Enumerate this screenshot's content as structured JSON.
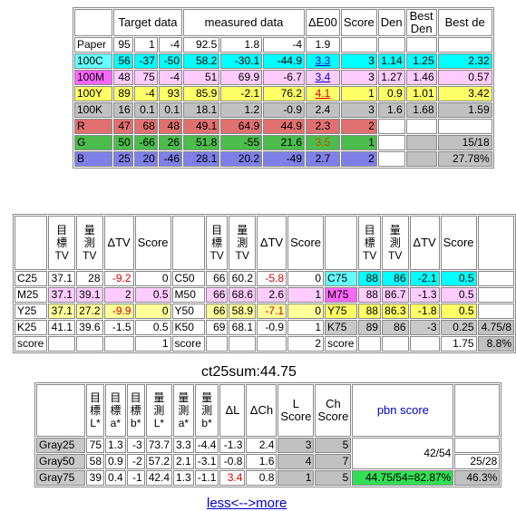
{
  "t1": {
    "headers": {
      "target": "Target data",
      "measured": "measured data",
      "de": "ΔE00",
      "score": "Score",
      "den": "Den",
      "best_den": "Best Den",
      "best_de": "Best de"
    },
    "rows": [
      {
        "name": "Paper",
        "t": [
          "95",
          "1",
          "-4"
        ],
        "m": [
          "92.5",
          "1.8",
          "-4"
        ],
        "de": "1.9",
        "score": "",
        "den": "",
        "bden": "",
        "bde": ""
      },
      {
        "name": "100C",
        "t": [
          "56",
          "-37",
          "-50"
        ],
        "m": [
          "58.2",
          "-30.1",
          "-44.9"
        ],
        "de": "3.3",
        "score": "3",
        "den": "1.14",
        "bden": "1.25",
        "bde": "2.32"
      },
      {
        "name": "100M",
        "t": [
          "48",
          "75",
          "-4"
        ],
        "m": [
          "51",
          "69.9",
          "-6.7"
        ],
        "de": "3.4",
        "score": "3",
        "den": "1.27",
        "bden": "1.46",
        "bde": "0.57"
      },
      {
        "name": "100Y",
        "t": [
          "89",
          "-4",
          "93"
        ],
        "m": [
          "85.9",
          "-2.1",
          "76.2"
        ],
        "de": "4.1",
        "score": "1",
        "den": "0.9",
        "bden": "1.01",
        "bde": "3.42"
      },
      {
        "name": "100K",
        "t": [
          "16",
          "0.1",
          "0.1"
        ],
        "m": [
          "18.1",
          "1.2",
          "-0.9"
        ],
        "de": "2.4",
        "score": "3",
        "den": "1.6",
        "bden": "1.68",
        "bde": "1.59"
      },
      {
        "name": "R",
        "t": [
          "47",
          "68",
          "48"
        ],
        "m": [
          "49.1",
          "64.9",
          "44.9"
        ],
        "de": "2.3",
        "score": "2",
        "den": "",
        "bden": "",
        "bde": ""
      },
      {
        "name": "G",
        "t": [
          "50",
          "-66",
          "26"
        ],
        "m": [
          "51.8",
          "-55",
          "21.6"
        ],
        "de": "3.5",
        "score": "1",
        "den": "",
        "bden": "",
        "bde": "15/18"
      },
      {
        "name": "B",
        "t": [
          "25",
          "20",
          "-46"
        ],
        "m": [
          "28.1",
          "20.2",
          "-49"
        ],
        "de": "2.7",
        "score": "2",
        "den": "",
        "bden": "",
        "bde": "27.78%"
      }
    ]
  },
  "t2": {
    "h": {
      "target": "目標TV",
      "meas": "量測TV",
      "dtv": "ΔTV",
      "score": "Score"
    },
    "rows": [
      [
        "C25",
        "37.1",
        "28",
        "-9.2",
        "0",
        "C50",
        "66",
        "60.2",
        "-5.8",
        "0",
        "C75",
        "88",
        "86",
        "-2.1",
        "0.5",
        ""
      ],
      [
        "M25",
        "37.1",
        "39.1",
        "2",
        "0.5",
        "M50",
        "66",
        "68.6",
        "2.6",
        "1",
        "M75",
        "88",
        "86.7",
        "-1.3",
        "0.5",
        ""
      ],
      [
        "Y25",
        "37.1",
        "27.2",
        "-9.9",
        "0",
        "Y50",
        "66",
        "58.9",
        "-7.1",
        "0",
        "Y75",
        "88",
        "86.3",
        "-1.8",
        "0.5",
        ""
      ],
      [
        "K25",
        "41.1",
        "39.6",
        "-1.5",
        "0.5",
        "K50",
        "69",
        "68.1",
        "-0.9",
        "1",
        "K75",
        "89",
        "86",
        "-3",
        "0.25",
        "4.75/8"
      ],
      [
        "score",
        "",
        "",
        "",
        "1",
        "score",
        "",
        "",
        "",
        "2",
        "score",
        "",
        "",
        "",
        "1.75",
        "8.8%"
      ]
    ]
  },
  "ct25sum": "ct25sum:44.75",
  "t3": {
    "h": {
      "tl": "目標L*",
      "ta": "目標a*",
      "tb": "目標b*",
      "ml": "量測L*",
      "ma": "量測a*",
      "mb": "量測b*",
      "dl": "ΔL",
      "dch": "ΔCh",
      "ls": "L Score",
      "cs": "Ch Score",
      "pbn": "pbn score"
    },
    "rows": [
      {
        "name": "Gray25",
        "v": [
          "75",
          "1.3",
          "-3",
          "73.7",
          "3.3",
          "-4.4",
          "-1.3",
          "2.4",
          "3",
          "5"
        ],
        "extra": "",
        "extra2": ""
      },
      {
        "name": "Gray50",
        "v": [
          "58",
          "0.9",
          "-2",
          "57.2",
          "2.1",
          "-3.1",
          "-0.8",
          "1.6",
          "4",
          "7"
        ],
        "extra": "",
        "extra2": "25/28"
      },
      {
        "name": "Gray75",
        "v": [
          "39",
          "0.4",
          "-1",
          "42.4",
          "1.3",
          "-1.1",
          "3.4",
          "0.8",
          "1",
          "5"
        ],
        "extra": "44.75/54=82.87%",
        "extra2": "46.3%"
      }
    ],
    "pbn_frac": "42/54"
  },
  "less_more": "less<-->more"
}
